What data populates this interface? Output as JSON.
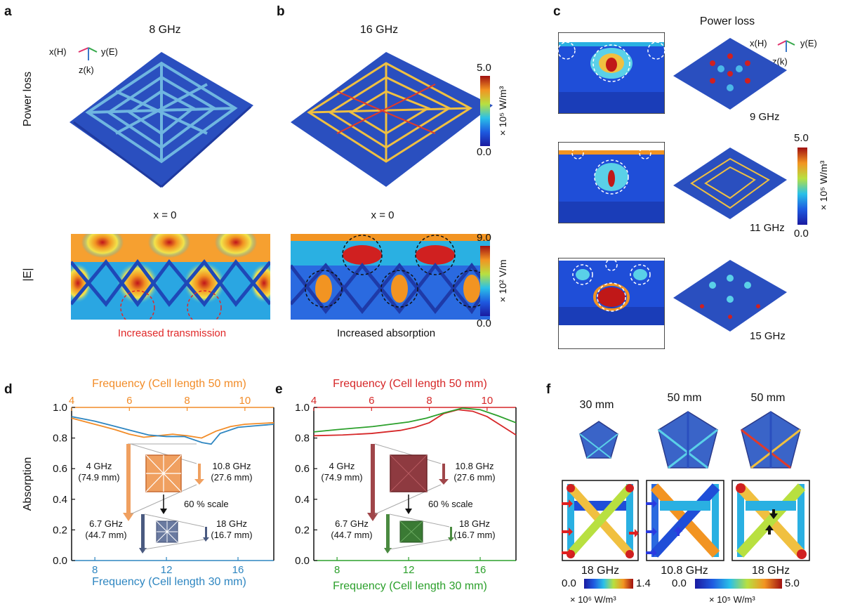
{
  "colors": {
    "orange": "#f28c28",
    "blue": "#2e86c1",
    "red": "#d62728",
    "green": "#2ca02c",
    "brick": "#a0464a",
    "slate": "#4a5a80"
  },
  "panel_labels": {
    "a": "a",
    "b": "b",
    "c": "c",
    "d": "d",
    "e": "e",
    "f": "f"
  },
  "top": {
    "a_title": "8 GHz",
    "b_title": "16 GHz",
    "c_title": "Power loss",
    "row_label_power": "Power loss",
    "row_label_field": "|E|",
    "axes_x": "x(H)",
    "axes_y": "y(E)",
    "axes_z": "z(k)",
    "x0_a": "x = 0",
    "x0_b": "x = 0",
    "increased_transmission": "Increased transmission",
    "increased_absorption": "Increased absorption",
    "cbar_power": {
      "max": "5.0",
      "min": "0.0",
      "unit": "× 10⁵ W/m³"
    },
    "cbar_field": {
      "max": "9.0",
      "min": "0.0",
      "unit": "× 10² V/m"
    },
    "c_freqs": [
      "9 GHz",
      "11 GHz",
      "15 GHz"
    ],
    "cbar_c": {
      "max": "5.0",
      "min": "0.0",
      "unit": "× 10⁵ W/m³"
    }
  },
  "chart_data": [
    {
      "type": "line",
      "panel": "d",
      "ylabel": "Absorption",
      "top_xlabel": "Frequency (Cell length 50 mm)",
      "bottom_xlabel": "Frequency (Cell length 30 mm)",
      "top_xlim": [
        4,
        11
      ],
      "top_ticks": [
        "4",
        "6",
        "8",
        "10"
      ],
      "bottom_xlim": [
        6.7,
        18
      ],
      "bottom_ticks": [
        "8",
        "12",
        "16"
      ],
      "ylim": [
        0.0,
        1.0
      ],
      "y_ticks": [
        "0.0",
        "0.2",
        "0.4",
        "0.6",
        "0.8",
        "1.0"
      ],
      "series": [
        {
          "axis": "top",
          "x": [
            4,
            4.5,
            5,
            5.5,
            6,
            6.5,
            7,
            7.5,
            8,
            8.5,
            9,
            9.5,
            10,
            10.5,
            11
          ],
          "y": [
            0.93,
            0.905,
            0.88,
            0.855,
            0.825,
            0.805,
            0.815,
            0.825,
            0.815,
            0.8,
            0.845,
            0.875,
            0.89,
            0.895,
            0.9
          ]
        },
        {
          "axis": "bottom",
          "x": [
            6.7,
            8,
            9,
            10,
            11,
            12,
            13,
            14,
            14.5,
            15,
            16,
            17,
            18
          ],
          "y": [
            0.94,
            0.91,
            0.88,
            0.85,
            0.82,
            0.81,
            0.81,
            0.77,
            0.76,
            0.83,
            0.87,
            0.88,
            0.89
          ]
        }
      ],
      "annotations": {
        "big_left": "4 GHz\n(74.9 mm)",
        "big_right": "10.8 GHz\n(27.6 mm)",
        "scale": "60 % scale",
        "small_left": "6.7 GHz\n(44.7 mm)",
        "small_right": "18 GHz\n(16.7 mm)"
      }
    },
    {
      "type": "line",
      "panel": "e",
      "top_xlabel": "Frequency (Cell length 50 mm)",
      "bottom_xlabel": "Frequency (Cell length 30 mm)",
      "top_xlim": [
        4,
        11
      ],
      "top_ticks": [
        "4",
        "6",
        "8",
        "10"
      ],
      "bottom_xlim": [
        6.7,
        18
      ],
      "bottom_ticks": [
        "8",
        "12",
        "16"
      ],
      "ylim": [
        0.0,
        1.0
      ],
      "y_ticks": [
        "0.0",
        "0.2",
        "0.4",
        "0.6",
        "0.8",
        "1.0"
      ],
      "series": [
        {
          "axis": "top",
          "x": [
            4,
            5,
            6,
            7,
            7.5,
            8,
            8.5,
            9,
            9.5,
            10,
            10.5,
            11
          ],
          "y": [
            0.815,
            0.82,
            0.83,
            0.85,
            0.87,
            0.9,
            0.96,
            0.985,
            0.975,
            0.94,
            0.88,
            0.82
          ]
        },
        {
          "axis": "bottom",
          "x": [
            6.7,
            8,
            10,
            12,
            13,
            14,
            15,
            16,
            17,
            18
          ],
          "y": [
            0.84,
            0.855,
            0.875,
            0.905,
            0.93,
            0.965,
            0.995,
            0.985,
            0.945,
            0.9
          ]
        }
      ],
      "annotations": {
        "big_left": "4 GHz\n(74.9 mm)",
        "big_right": "10.8 GHz\n(27.6 mm)",
        "scale": "60 % scale",
        "small_left": "6.7 GHz\n(44.7 mm)",
        "small_right": "18 GHz\n(16.7 mm)"
      }
    }
  ],
  "f": {
    "cols": [
      "30 mm",
      "50 mm",
      "50 mm"
    ],
    "freqs": [
      "18 GHz",
      "10.8 GHz",
      "18 GHz"
    ],
    "cbar1": {
      "min": "0.0",
      "max": "1.4",
      "unit": "× 10⁶ W/m³"
    },
    "cbar2": {
      "min": "0.0",
      "max": "5.0",
      "unit": "× 10⁵ W/m³"
    }
  }
}
